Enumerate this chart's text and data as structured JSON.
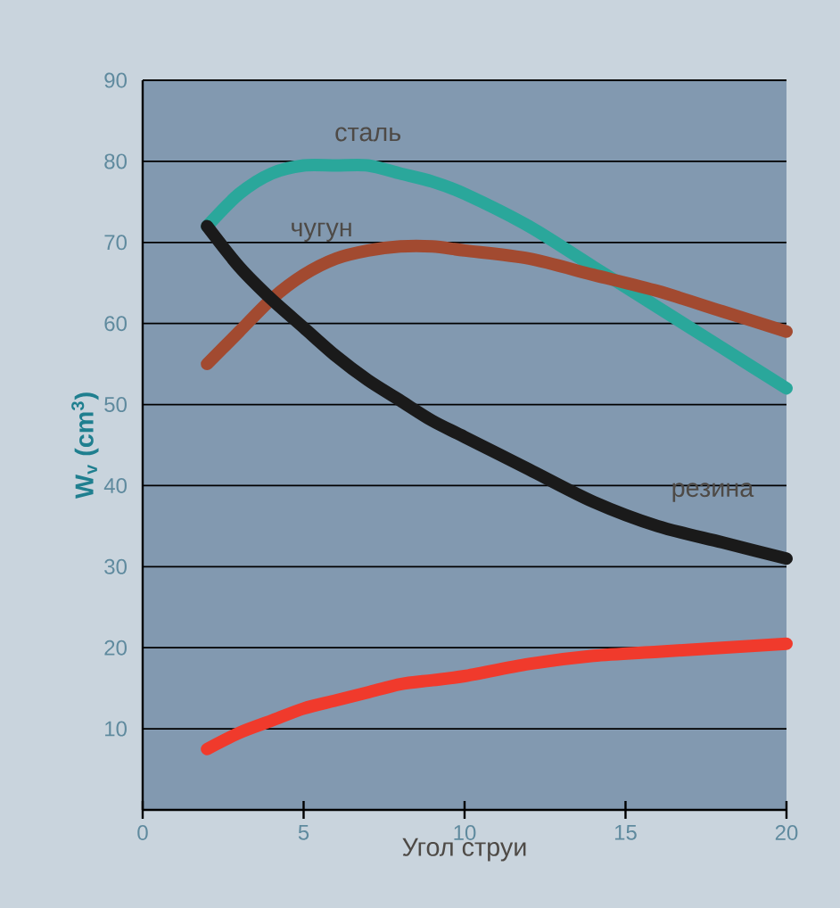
{
  "chart_data": {
    "type": "line",
    "xlabel": "Угол струи",
    "ylabel": "**W$_{v}$ (cm$^{3}$)**",
    "xlim": [
      0,
      20
    ],
    "ylim": [
      0,
      90
    ],
    "xticks": [
      0,
      5,
      10,
      15,
      20
    ],
    "yticks": [
      10,
      20,
      30,
      40,
      50,
      60,
      70,
      80,
      90
    ],
    "grid": "y",
    "legend": false,
    "marker": "none",
    "line_style": "solid",
    "x": [
      2,
      3,
      4,
      5,
      6,
      7,
      8,
      9,
      10,
      12,
      14,
      16,
      18,
      20
    ],
    "series": [
      {
        "name": "сталь",
        "color": "#2aa79b",
        "values": [
          72,
          76,
          78.5,
          79.5,
          79.5,
          79.5,
          78.5,
          77.5,
          76,
          72,
          67,
          62,
          57,
          52
        ]
      },
      {
        "name": "чугун",
        "color": "#a24a30",
        "values": [
          55,
          59,
          63,
          66,
          68,
          69,
          69.5,
          69.5,
          69,
          68,
          66,
          64,
          61.5,
          59
        ]
      },
      {
        "name": "резина",
        "color": "#1a1a1a",
        "values": [
          72,
          67,
          63,
          59.5,
          56,
          53,
          50.5,
          48,
          46,
          42,
          38,
          35,
          33,
          31
        ]
      },
      {
        "color": "#f03a2c",
        "values": [
          7.5,
          9.5,
          11,
          12.5,
          13.5,
          14.5,
          15.5,
          16,
          16.5,
          18,
          19,
          19.5,
          20,
          20.5
        ]
      }
    ]
  }
}
